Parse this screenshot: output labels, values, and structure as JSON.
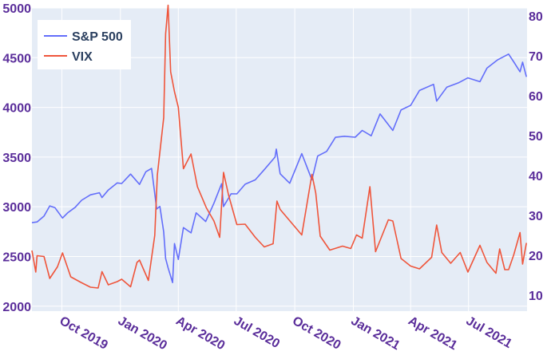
{
  "chart_data": {
    "type": "line",
    "title": "",
    "xlabel": "",
    "ylabel": "",
    "x_range": [
      "2019-08-15",
      "2021-10-01"
    ],
    "y_left": {
      "range": [
        1950,
        5000
      ],
      "ticks": [
        2000,
        2500,
        3000,
        3500,
        4000,
        4500,
        5000
      ]
    },
    "y_right": {
      "range": [
        6,
        82
      ],
      "ticks": [
        10,
        20,
        30,
        40,
        50,
        60,
        70,
        80
      ]
    },
    "x_ticks": [
      {
        "date": "2019-10-01",
        "label": "Oct 2019"
      },
      {
        "date": "2020-01-01",
        "label": "Jan 2020"
      },
      {
        "date": "2020-04-01",
        "label": "Apr 2020"
      },
      {
        "date": "2020-07-01",
        "label": "Jul 2020"
      },
      {
        "date": "2020-10-01",
        "label": "Oct 2020"
      },
      {
        "date": "2021-01-01",
        "label": "Jan 2021"
      },
      {
        "date": "2021-04-01",
        "label": "Apr 2021"
      },
      {
        "date": "2021-07-01",
        "label": "Jul 2021"
      }
    ],
    "grid": true,
    "legend_position": "top-left",
    "series": [
      {
        "name": "S&P 500",
        "axis": "left",
        "color": "#636efa",
        "points": [
          [
            "2019-08-15",
            2840
          ],
          [
            "2019-08-23",
            2847
          ],
          [
            "2019-09-03",
            2906
          ],
          [
            "2019-09-12",
            3009
          ],
          [
            "2019-09-20",
            2992
          ],
          [
            "2019-10-02",
            2887
          ],
          [
            "2019-10-10",
            2938
          ],
          [
            "2019-10-22",
            2995
          ],
          [
            "2019-11-01",
            3066
          ],
          [
            "2019-11-15",
            3120
          ],
          [
            "2019-11-29",
            3141
          ],
          [
            "2019-12-03",
            3093
          ],
          [
            "2019-12-13",
            3168
          ],
          [
            "2019-12-27",
            3240
          ],
          [
            "2020-01-03",
            3234
          ],
          [
            "2020-01-17",
            3329
          ],
          [
            "2020-01-31",
            3225
          ],
          [
            "2020-02-10",
            3352
          ],
          [
            "2020-02-19",
            3386
          ],
          [
            "2020-02-27",
            2978
          ],
          [
            "2020-03-03",
            3003
          ],
          [
            "2020-03-09",
            2746
          ],
          [
            "2020-03-12",
            2480
          ],
          [
            "2020-03-16",
            2386
          ],
          [
            "2020-03-23",
            2237
          ],
          [
            "2020-03-26",
            2630
          ],
          [
            "2020-04-01",
            2470
          ],
          [
            "2020-04-09",
            2790
          ],
          [
            "2020-04-21",
            2737
          ],
          [
            "2020-04-29",
            2939
          ],
          [
            "2020-05-14",
            2852
          ],
          [
            "2020-05-27",
            3036
          ],
          [
            "2020-06-08",
            3232
          ],
          [
            "2020-06-11",
            3002
          ],
          [
            "2020-06-23",
            3131
          ],
          [
            "2020-07-02",
            3130
          ],
          [
            "2020-07-15",
            3227
          ],
          [
            "2020-07-31",
            3271
          ],
          [
            "2020-08-14",
            3373
          ],
          [
            "2020-08-31",
            3500
          ],
          [
            "2020-09-02",
            3580
          ],
          [
            "2020-09-08",
            3332
          ],
          [
            "2020-09-23",
            3237
          ],
          [
            "2020-10-12",
            3534
          ],
          [
            "2020-10-28",
            3271
          ],
          [
            "2020-11-06",
            3510
          ],
          [
            "2020-11-20",
            3557
          ],
          [
            "2020-12-04",
            3699
          ],
          [
            "2020-12-18",
            3709
          ],
          [
            "2021-01-04",
            3700
          ],
          [
            "2021-01-15",
            3768
          ],
          [
            "2021-01-29",
            3714
          ],
          [
            "2021-02-12",
            3934
          ],
          [
            "2021-03-04",
            3768
          ],
          [
            "2021-03-17",
            3974
          ],
          [
            "2021-04-01",
            4020
          ],
          [
            "2021-04-15",
            4170
          ],
          [
            "2021-05-07",
            4232
          ],
          [
            "2021-05-12",
            4063
          ],
          [
            "2021-05-28",
            4204
          ],
          [
            "2021-06-15",
            4246
          ],
          [
            "2021-06-30",
            4297
          ],
          [
            "2021-07-19",
            4258
          ],
          [
            "2021-07-30",
            4395
          ],
          [
            "2021-08-16",
            4479
          ],
          [
            "2021-09-02",
            4536
          ],
          [
            "2021-09-10",
            4458
          ],
          [
            "2021-09-20",
            4358
          ],
          [
            "2021-09-24",
            4455
          ],
          [
            "2021-09-30",
            4307
          ]
        ]
      },
      {
        "name": "VIX",
        "axis": "right",
        "color": "#ef553b",
        "points": [
          [
            "2019-08-15",
            21.2
          ],
          [
            "2019-08-21",
            15.8
          ],
          [
            "2019-08-23",
            19.9
          ],
          [
            "2019-09-03",
            19.7
          ],
          [
            "2019-09-12",
            14.2
          ],
          [
            "2019-09-24",
            17.1
          ],
          [
            "2019-10-02",
            20.6
          ],
          [
            "2019-10-15",
            14.6
          ],
          [
            "2019-10-31",
            13.2
          ],
          [
            "2019-11-15",
            12.0
          ],
          [
            "2019-11-27",
            11.8
          ],
          [
            "2019-12-03",
            15.9
          ],
          [
            "2019-12-13",
            12.6
          ],
          [
            "2019-12-27",
            13.4
          ],
          [
            "2020-01-03",
            14.0
          ],
          [
            "2020-01-17",
            12.1
          ],
          [
            "2020-01-27",
            18.2
          ],
          [
            "2020-01-31",
            18.8
          ],
          [
            "2020-02-14",
            13.7
          ],
          [
            "2020-02-24",
            25.0
          ],
          [
            "2020-02-28",
            40.1
          ],
          [
            "2020-03-09",
            54.5
          ],
          [
            "2020-03-12",
            75.5
          ],
          [
            "2020-03-16",
            82.7
          ],
          [
            "2020-03-20",
            66.0
          ],
          [
            "2020-03-26",
            61.0
          ],
          [
            "2020-04-01",
            57.1
          ],
          [
            "2020-04-09",
            41.7
          ],
          [
            "2020-04-21",
            45.4
          ],
          [
            "2020-05-01",
            37.2
          ],
          [
            "2020-05-15",
            31.9
          ],
          [
            "2020-05-27",
            28.6
          ],
          [
            "2020-06-05",
            24.5
          ],
          [
            "2020-06-11",
            40.8
          ],
          [
            "2020-06-19",
            35.1
          ],
          [
            "2020-07-02",
            27.7
          ],
          [
            "2020-07-15",
            27.8
          ],
          [
            "2020-07-31",
            24.5
          ],
          [
            "2020-08-14",
            22.1
          ],
          [
            "2020-08-28",
            22.9
          ],
          [
            "2020-09-03",
            33.6
          ],
          [
            "2020-09-08",
            31.5
          ],
          [
            "2020-09-24",
            28.5
          ],
          [
            "2020-10-12",
            25.1
          ],
          [
            "2020-10-28",
            40.3
          ],
          [
            "2020-11-03",
            35.6
          ],
          [
            "2020-11-10",
            24.8
          ],
          [
            "2020-11-25",
            21.3
          ],
          [
            "2020-12-15",
            22.3
          ],
          [
            "2020-12-28",
            21.7
          ],
          [
            "2021-01-06",
            25.1
          ],
          [
            "2021-01-15",
            24.3
          ],
          [
            "2021-01-27",
            37.2
          ],
          [
            "2021-02-05",
            20.9
          ],
          [
            "2021-02-25",
            28.9
          ],
          [
            "2021-03-04",
            28.6
          ],
          [
            "2021-03-17",
            19.2
          ],
          [
            "2021-04-01",
            17.3
          ],
          [
            "2021-04-15",
            16.6
          ],
          [
            "2021-05-04",
            19.5
          ],
          [
            "2021-05-12",
            27.6
          ],
          [
            "2021-05-20",
            20.7
          ],
          [
            "2021-06-03",
            18.0
          ],
          [
            "2021-06-18",
            20.7
          ],
          [
            "2021-06-30",
            15.8
          ],
          [
            "2021-07-19",
            22.5
          ],
          [
            "2021-07-30",
            18.2
          ],
          [
            "2021-08-13",
            15.5
          ],
          [
            "2021-08-19",
            21.6
          ],
          [
            "2021-08-27",
            16.4
          ],
          [
            "2021-09-02",
            16.4
          ],
          [
            "2021-09-10",
            20.1
          ],
          [
            "2021-09-20",
            25.7
          ],
          [
            "2021-09-24",
            17.8
          ],
          [
            "2021-09-30",
            23.1
          ]
        ]
      }
    ]
  }
}
